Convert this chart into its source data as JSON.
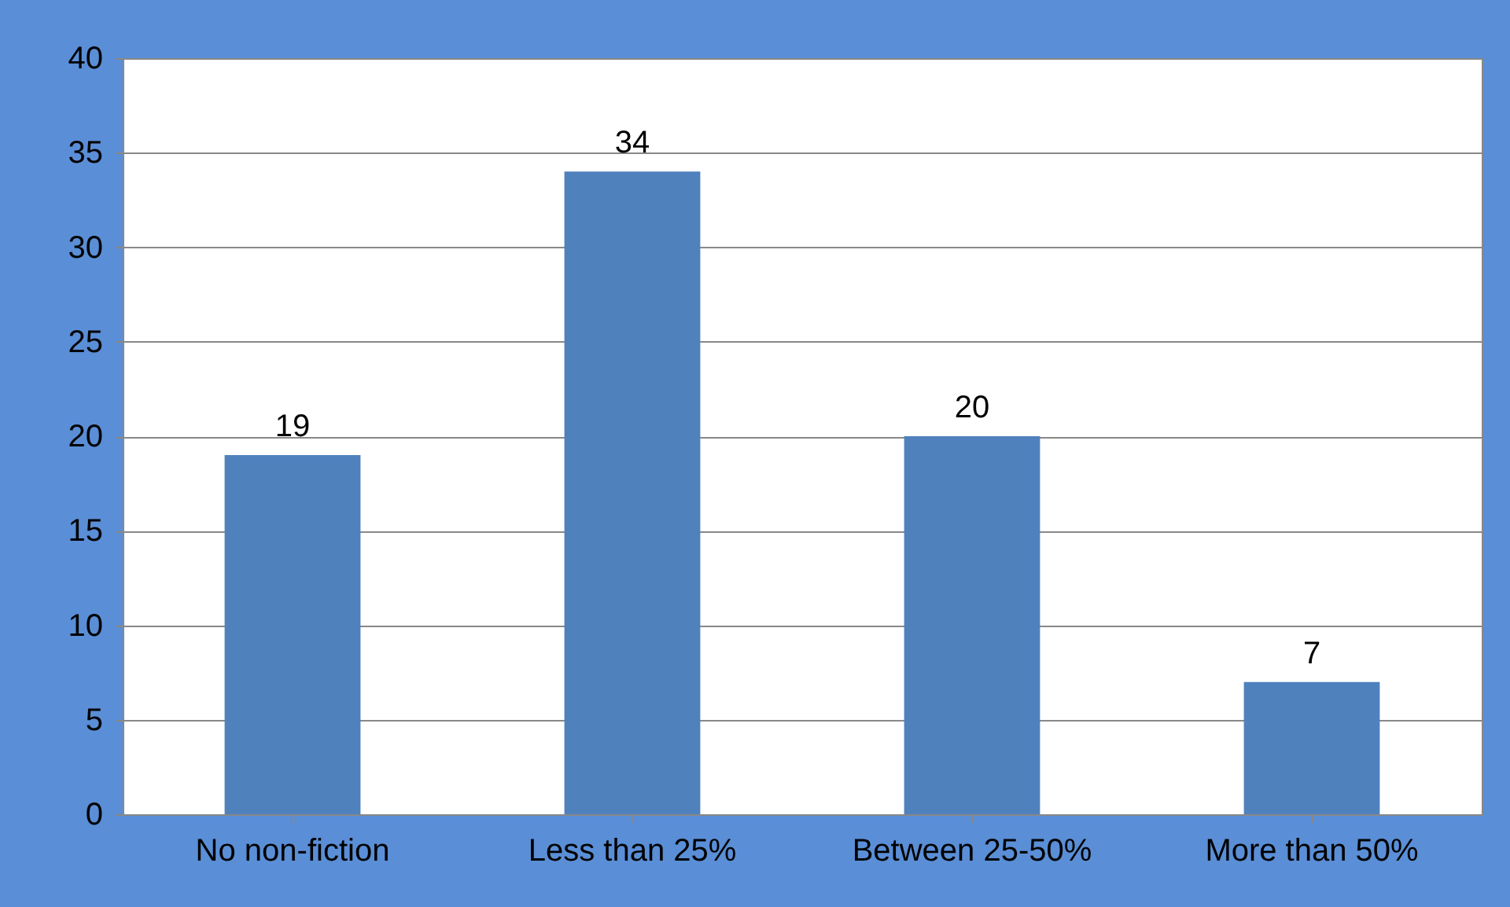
{
  "chart_data": {
    "type": "bar",
    "categories": [
      "No non-fiction",
      "Less than 25%",
      "Between 25-50%",
      "More than 50%"
    ],
    "values": [
      19,
      34,
      20,
      7
    ],
    "color": "#4f81bd",
    "ylim": [
      0,
      40
    ],
    "yticks": [
      0,
      5,
      10,
      15,
      20,
      25,
      30,
      35,
      40
    ],
    "grid": "y",
    "data_labels": true
  }
}
